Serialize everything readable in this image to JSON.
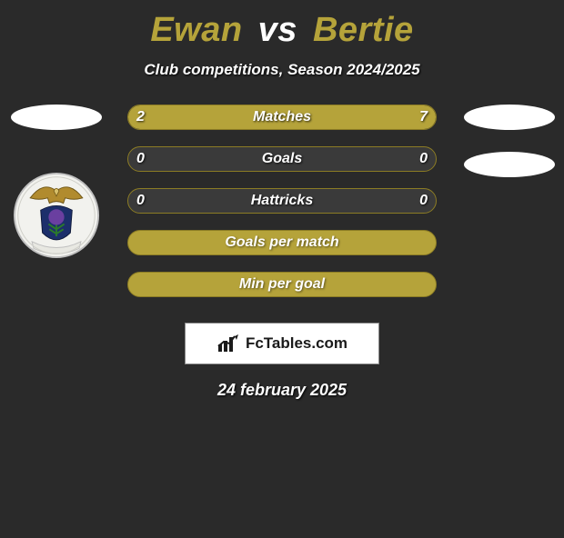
{
  "title": {
    "player1": "Ewan",
    "vs": "vs",
    "player2": "Bertie",
    "p1_color": "#b5a33a",
    "p2_color": "#b5a33a",
    "vs_color": "#ffffff"
  },
  "subtitle": "Club competitions, Season 2024/2025",
  "date": "24 february 2025",
  "watermark": "FcTables.com",
  "theme": {
    "background": "#2a2a2a",
    "accent": "#b5a33a",
    "accent_border": "#8c7c24",
    "pill_bg": "#3a3a3a",
    "text": "#ffffff"
  },
  "rows": {
    "matches": {
      "label": "Matches",
      "left": "2",
      "right": "7",
      "left_pct": 22,
      "right_pct": 78
    },
    "goals": {
      "label": "Goals",
      "left": "0",
      "right": "0",
      "left_pct": 0,
      "right_pct": 0
    },
    "hattricks": {
      "label": "Hattricks",
      "left": "0",
      "right": "0",
      "left_pct": 0,
      "right_pct": 0
    },
    "gpm": {
      "label": "Goals per match"
    },
    "mpg": {
      "label": "Min per goal"
    }
  }
}
